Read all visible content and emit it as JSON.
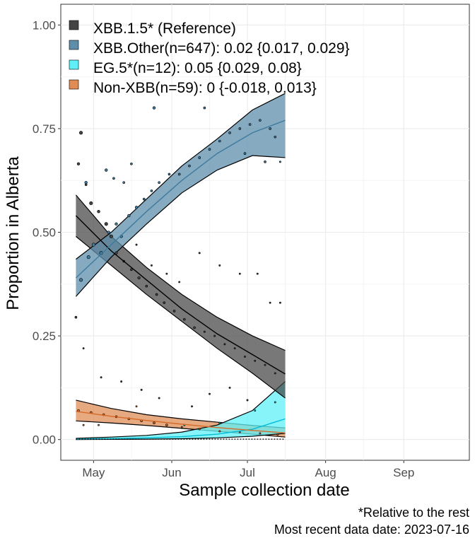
{
  "chart_data": {
    "type": "line",
    "xlabel": "Sample collection date",
    "ylabel": "Proportion in Alberta",
    "xlim": [
      "2023-04-18",
      "2023-09-27"
    ],
    "ylim": [
      -0.05,
      1.05
    ],
    "x_ticks": [
      {
        "date": "2023-05-01",
        "label": "May"
      },
      {
        "date": "2023-06-01",
        "label": "Jun"
      },
      {
        "date": "2023-07-01",
        "label": "Jul"
      },
      {
        "date": "2023-08-01",
        "label": "Aug"
      },
      {
        "date": "2023-09-01",
        "label": "Sep"
      }
    ],
    "y_ticks": [
      {
        "value": 0.0,
        "label": "0.00"
      },
      {
        "value": 0.25,
        "label": "0.25"
      },
      {
        "value": 0.5,
        "label": "0.50"
      },
      {
        "value": 0.75,
        "label": "0.75"
      },
      {
        "value": 1.0,
        "label": "1.00"
      }
    ],
    "grid": true,
    "legend_position": "top-left",
    "series": [
      {
        "name": "XBB.1.5* (Reference)",
        "color": "#444444",
        "fit": {
          "dates": [
            "2023-04-24",
            "2023-05-08",
            "2023-05-22",
            "2023-06-05",
            "2023-06-19",
            "2023-07-03",
            "2023-07-16"
          ],
          "mid": [
            0.54,
            0.455,
            0.385,
            0.315,
            0.255,
            0.205,
            0.158
          ],
          "lower": [
            0.49,
            0.42,
            0.35,
            0.285,
            0.22,
            0.16,
            0.1
          ],
          "upper": [
            0.59,
            0.49,
            0.415,
            0.35,
            0.295,
            0.25,
            0.215
          ]
        },
        "points": [
          {
            "date": "2023-04-26",
            "y": 0.74,
            "s": 3
          },
          {
            "date": "2023-04-25",
            "y": 0.665,
            "s": 2.5
          },
          {
            "date": "2023-04-28",
            "y": 0.615,
            "s": 2
          },
          {
            "date": "2023-04-30",
            "y": 0.57,
            "s": 3
          },
          {
            "date": "2023-05-03",
            "y": 0.55,
            "s": 2.5
          },
          {
            "date": "2023-05-06",
            "y": 0.52,
            "s": 3
          },
          {
            "date": "2023-05-08",
            "y": 0.49,
            "s": 3
          },
          {
            "date": "2023-05-10",
            "y": 0.45,
            "s": 2.5
          },
          {
            "date": "2023-05-13",
            "y": 0.43,
            "s": 2
          },
          {
            "date": "2023-05-16",
            "y": 0.41,
            "s": 2
          },
          {
            "date": "2023-05-19",
            "y": 0.39,
            "s": 2.5
          },
          {
            "date": "2023-05-22",
            "y": 0.37,
            "s": 2
          },
          {
            "date": "2023-05-26",
            "y": 0.35,
            "s": 2
          },
          {
            "date": "2023-05-29",
            "y": 0.33,
            "s": 2
          },
          {
            "date": "2023-06-02",
            "y": 0.31,
            "s": 2
          },
          {
            "date": "2023-06-06",
            "y": 0.29,
            "s": 2
          },
          {
            "date": "2023-06-10",
            "y": 0.27,
            "s": 2
          },
          {
            "date": "2023-06-14",
            "y": 0.26,
            "s": 1.5
          },
          {
            "date": "2023-06-18",
            "y": 0.25,
            "s": 1.5
          },
          {
            "date": "2023-06-22",
            "y": 0.23,
            "s": 1.5
          },
          {
            "date": "2023-06-26",
            "y": 0.22,
            "s": 1.5
          },
          {
            "date": "2023-06-30",
            "y": 0.2,
            "s": 1.5
          },
          {
            "date": "2023-07-04",
            "y": 0.19,
            "s": 1.5
          },
          {
            "date": "2023-07-08",
            "y": 0.18,
            "s": 1.5
          },
          {
            "date": "2023-07-12",
            "y": 0.16,
            "s": 1.5
          },
          {
            "date": "2023-04-24",
            "y": 0.295,
            "s": 2
          },
          {
            "date": "2023-04-27",
            "y": 0.22,
            "s": 1.5
          },
          {
            "date": "2023-05-04",
            "y": 0.15,
            "s": 1.5
          },
          {
            "date": "2023-05-12",
            "y": 0.14,
            "s": 1.5
          },
          {
            "date": "2023-05-20",
            "y": 0.12,
            "s": 1.5
          },
          {
            "date": "2023-05-27",
            "y": 0.1,
            "s": 1.5
          },
          {
            "date": "2023-06-09",
            "y": 0.08,
            "s": 1.5
          },
          {
            "date": "2023-06-16",
            "y": 0.11,
            "s": 1.5
          },
          {
            "date": "2023-06-24",
            "y": 0.125,
            "s": 1.5
          },
          {
            "date": "2023-07-01",
            "y": 0.095,
            "s": 1.5
          },
          {
            "date": "2023-07-10",
            "y": 0.33,
            "s": 1.5
          },
          {
            "date": "2023-07-14",
            "y": 0.33,
            "s": 1.5
          },
          {
            "date": "2023-07-05",
            "y": 0.4,
            "s": 1.5
          },
          {
            "date": "2023-06-28",
            "y": 0.4,
            "s": 1.5
          },
          {
            "date": "2023-06-20",
            "y": 0.42,
            "s": 1.5
          },
          {
            "date": "2023-06-12",
            "y": 0.45,
            "s": 1.5
          },
          {
            "date": "2023-06-04",
            "y": 0.38,
            "s": 1.5
          },
          {
            "date": "2023-05-30",
            "y": 0.4,
            "s": 1.5
          },
          {
            "date": "2023-05-24",
            "y": 0.42,
            "s": 1.5
          },
          {
            "date": "2023-05-18",
            "y": 0.47,
            "s": 1.5
          }
        ]
      },
      {
        "name": "XBB.Other(n=647): 0.02 {0.017, 0.029}",
        "color": "#3e7ba0",
        "fill": "#5e8ea9",
        "fit": {
          "dates": [
            "2023-04-24",
            "2023-05-08",
            "2023-05-22",
            "2023-06-05",
            "2023-06-19",
            "2023-07-03",
            "2023-07-16"
          ],
          "mid": [
            0.39,
            0.47,
            0.55,
            0.625,
            0.69,
            0.74,
            0.77
          ],
          "lower": [
            0.345,
            0.44,
            0.52,
            0.595,
            0.65,
            0.685,
            0.68
          ],
          "upper": [
            0.435,
            0.5,
            0.58,
            0.66,
            0.725,
            0.795,
            0.835
          ]
        },
        "points": [
          {
            "date": "2023-04-26",
            "y": 0.385,
            "s": 3
          },
          {
            "date": "2023-04-29",
            "y": 0.44,
            "s": 3
          },
          {
            "date": "2023-05-01",
            "y": 0.47,
            "s": 3
          },
          {
            "date": "2023-05-04",
            "y": 0.45,
            "s": 3
          },
          {
            "date": "2023-05-07",
            "y": 0.5,
            "s": 2.5
          },
          {
            "date": "2023-05-10",
            "y": 0.52,
            "s": 2.5
          },
          {
            "date": "2023-05-12",
            "y": 0.49,
            "s": 2.5
          },
          {
            "date": "2023-05-15",
            "y": 0.54,
            "s": 2.5
          },
          {
            "date": "2023-05-18",
            "y": 0.56,
            "s": 2.5
          },
          {
            "date": "2023-05-21",
            "y": 0.58,
            "s": 2
          },
          {
            "date": "2023-05-24",
            "y": 0.6,
            "s": 2
          },
          {
            "date": "2023-05-27",
            "y": 0.62,
            "s": 2
          },
          {
            "date": "2023-05-31",
            "y": 0.64,
            "s": 2
          },
          {
            "date": "2023-06-04",
            "y": 0.64,
            "s": 2
          },
          {
            "date": "2023-06-08",
            "y": 0.66,
            "s": 2
          },
          {
            "date": "2023-06-12",
            "y": 0.68,
            "s": 2
          },
          {
            "date": "2023-06-16",
            "y": 0.7,
            "s": 2
          },
          {
            "date": "2023-06-20",
            "y": 0.72,
            "s": 2
          },
          {
            "date": "2023-06-24",
            "y": 0.74,
            "s": 2
          },
          {
            "date": "2023-06-28",
            "y": 0.75,
            "s": 2
          },
          {
            "date": "2023-07-02",
            "y": 0.76,
            "s": 2
          },
          {
            "date": "2023-07-06",
            "y": 0.77,
            "s": 2
          },
          {
            "date": "2023-07-10",
            "y": 0.75,
            "s": 2
          },
          {
            "date": "2023-05-06",
            "y": 0.65,
            "s": 2.5
          },
          {
            "date": "2023-05-16",
            "y": 0.665,
            "s": 2
          },
          {
            "date": "2023-05-25",
            "y": 0.8,
            "s": 2.5
          },
          {
            "date": "2023-05-13",
            "y": 0.62,
            "s": 2
          },
          {
            "date": "2023-05-09",
            "y": 0.63,
            "s": 2
          },
          {
            "date": "2023-04-28",
            "y": 0.62,
            "s": 2.5
          },
          {
            "date": "2023-06-14",
            "y": 0.8,
            "s": 2
          },
          {
            "date": "2023-06-30",
            "y": 0.69,
            "s": 2
          },
          {
            "date": "2023-07-08",
            "y": 0.67,
            "s": 2
          },
          {
            "date": "2023-07-12",
            "y": 0.73,
            "s": 2
          },
          {
            "date": "2023-07-14",
            "y": 0.67,
            "s": 1.5
          }
        ]
      },
      {
        "name": "EG.5*(n=12): 0.05 {0.029, 0.08}",
        "color": "#00bcd4",
        "fill": "#5ff0f7",
        "fit": {
          "dates": [
            "2023-04-24",
            "2023-05-08",
            "2023-05-22",
            "2023-06-05",
            "2023-06-19",
            "2023-07-03",
            "2023-07-16"
          ],
          "mid": [
            0.001,
            0.002,
            0.004,
            0.007,
            0.013,
            0.025,
            0.05
          ],
          "lower": [
            0.0,
            0.0005,
            0.001,
            0.002,
            0.004,
            0.008,
            0.015
          ],
          "upper": [
            0.003,
            0.006,
            0.01,
            0.018,
            0.035,
            0.07,
            0.14
          ]
        },
        "points": [
          {
            "date": "2023-06-06",
            "y": 0.035,
            "s": 1.5
          },
          {
            "date": "2023-06-20",
            "y": 0.04,
            "s": 1.5
          },
          {
            "date": "2023-07-04",
            "y": 0.07,
            "s": 1.5
          },
          {
            "date": "2023-07-12",
            "y": 0.09,
            "s": 1.5
          }
        ]
      },
      {
        "name": "Non-XBB(n=59): 0 {-0.018, 0.013}",
        "color": "#d46a28",
        "fill": "#df8c55",
        "fit": {
          "dates": [
            "2023-04-24",
            "2023-05-08",
            "2023-05-22",
            "2023-06-05",
            "2023-06-19",
            "2023-07-03",
            "2023-07-16"
          ],
          "mid": [
            0.068,
            0.056,
            0.046,
            0.037,
            0.029,
            0.022,
            0.016
          ],
          "lower": [
            0.045,
            0.04,
            0.034,
            0.027,
            0.02,
            0.013,
            0.006
          ],
          "upper": [
            0.095,
            0.075,
            0.06,
            0.05,
            0.042,
            0.034,
            0.028
          ]
        },
        "points": [
          {
            "date": "2023-04-25",
            "y": 0.07,
            "s": 2
          },
          {
            "date": "2023-04-30",
            "y": 0.065,
            "s": 2
          },
          {
            "date": "2023-05-05",
            "y": 0.06,
            "s": 2
          },
          {
            "date": "2023-05-10",
            "y": 0.055,
            "s": 2
          },
          {
            "date": "2023-05-15",
            "y": 0.05,
            "s": 2
          },
          {
            "date": "2023-05-20",
            "y": 0.045,
            "s": 2
          },
          {
            "date": "2023-05-25",
            "y": 0.04,
            "s": 2
          },
          {
            "date": "2023-05-30",
            "y": 0.035,
            "s": 2
          },
          {
            "date": "2023-06-05",
            "y": 0.03,
            "s": 1.5
          },
          {
            "date": "2023-06-12",
            "y": 0.025,
            "s": 1.5
          },
          {
            "date": "2023-06-20",
            "y": 0.02,
            "s": 1.5
          },
          {
            "date": "2023-06-28",
            "y": 0.018,
            "s": 1.5
          },
          {
            "date": "2023-07-06",
            "y": 0.015,
            "s": 1.5
          },
          {
            "date": "2023-07-13",
            "y": 0.012,
            "s": 1.5
          },
          {
            "date": "2023-04-27",
            "y": 0.035,
            "s": 1.5
          },
          {
            "date": "2023-05-03",
            "y": 0.035,
            "s": 1.5
          },
          {
            "date": "2023-05-18",
            "y": 0.08,
            "s": 1.5
          }
        ]
      }
    ],
    "captions": [
      "*Relative to the rest",
      "Most recent data date: 2023-07-16"
    ]
  }
}
